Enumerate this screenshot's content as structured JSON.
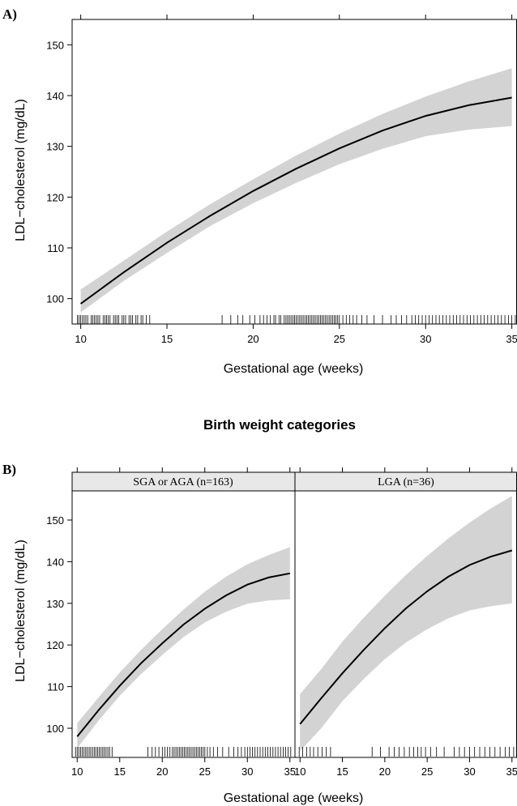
{
  "chart_data": [
    {
      "panel": "A)",
      "type": "line",
      "xlabel": "Gestational age (weeks)",
      "ylabel": "LDL−cholesterol (mg/dL)",
      "xlim": [
        9.5,
        35.3
      ],
      "ylim": [
        95,
        155
      ],
      "x_ticks": [
        10,
        15,
        20,
        25,
        30,
        35
      ],
      "y_ticks": [
        100,
        110,
        120,
        130,
        140,
        150
      ],
      "grid": false,
      "series": [
        {
          "x": [
            10,
            12.5,
            15,
            17.5,
            20,
            22.5,
            25,
            27.5,
            30,
            32.5,
            35
          ],
          "y": [
            99,
            105.2,
            111,
            116.3,
            121.2,
            125.6,
            129.6,
            133.1,
            136,
            138.1,
            139.6
          ],
          "lower": [
            97.3,
            103.5,
            109,
            114.3,
            118.8,
            122.8,
            126.5,
            129.5,
            132,
            133.3,
            134
          ],
          "upper": [
            101.8,
            107.5,
            113.2,
            118.6,
            123.5,
            128.2,
            132.5,
            136.4,
            139.8,
            142.8,
            145.4
          ]
        }
      ],
      "rug": [
        9.8,
        9.9,
        10,
        10.1,
        10.2,
        10.3,
        10.4,
        10.6,
        10.7,
        10.8,
        10.9,
        11,
        11.1,
        11.3,
        11.4,
        11.5,
        11.6,
        11.7,
        11.9,
        12,
        12.1,
        12.2,
        12.4,
        12.5,
        12.6,
        12.8,
        12.9,
        13,
        13.2,
        13.3,
        13.5,
        13.6,
        13.8,
        14,
        18.2,
        18.7,
        19.1,
        19.4,
        19.8,
        20.1,
        20.4,
        20.6,
        20.8,
        21,
        21.2,
        21.3,
        21.5,
        21.6,
        21.8,
        21.9,
        22,
        22.1,
        22.2,
        22.3,
        22.4,
        22.5,
        22.6,
        22.7,
        22.8,
        22.9,
        23,
        23.1,
        23.2,
        23.3,
        23.4,
        23.5,
        23.6,
        23.7,
        23.8,
        23.9,
        24,
        24.1,
        24.2,
        24.3,
        24.4,
        24.5,
        24.6,
        24.7,
        24.8,
        24.9,
        25,
        25.2,
        25.4,
        25.6,
        25.8,
        26,
        26.3,
        26.6,
        27,
        27.5,
        28,
        28.3,
        28.6,
        28.9,
        29.2,
        29.4,
        29.6,
        29.8,
        30,
        30.2,
        30.4,
        30.6,
        30.8,
        31,
        31.2,
        31.4,
        31.6,
        31.8,
        32,
        32.2,
        32.4,
        32.6,
        32.8,
        33,
        33.2,
        33.4,
        33.6,
        33.8,
        34,
        34.2,
        34.4,
        34.6,
        34.8,
        35,
        35.2
      ]
    },
    {
      "panel": "B)",
      "title": "Birth weight categories",
      "type": "line",
      "xlabel": "Gestational age (weeks)",
      "ylabel": "LDL−cholesterol (mg/dL)",
      "xlim": [
        9.5,
        35.5
      ],
      "ylim": [
        93,
        157
      ],
      "x_ticks": [
        10,
        15,
        20,
        25,
        30,
        35
      ],
      "y_ticks": [
        100,
        110,
        120,
        130,
        140,
        150
      ],
      "grid": false,
      "facets": [
        {
          "strip": "SGA or AGA (n=163)",
          "x": [
            10,
            12.5,
            15,
            17.5,
            20,
            22.5,
            25,
            27.5,
            30,
            32.5,
            35
          ],
          "y": [
            98,
            104.3,
            110.2,
            115.6,
            120.4,
            124.9,
            128.7,
            131.9,
            134.5,
            136.2,
            137.2
          ],
          "lower": [
            95.2,
            101.8,
            107.8,
            113,
            117.6,
            121.9,
            125.4,
            128,
            129.9,
            130.7,
            131
          ],
          "upper": [
            101.2,
            107.4,
            113.4,
            118.8,
            123.8,
            128.5,
            132.8,
            136.4,
            139.4,
            141.6,
            143.5
          ],
          "rug": [
            9.8,
            10,
            10.2,
            10.4,
            10.6,
            10.8,
            11,
            11.2,
            11.4,
            11.6,
            11.8,
            12,
            12.2,
            12.4,
            12.6,
            12.8,
            13,
            13.2,
            13.4,
            13.6,
            13.8,
            14.1,
            18.3,
            18.8,
            19.2,
            19.6,
            20,
            20.3,
            20.6,
            20.9,
            21.2,
            21.4,
            21.6,
            21.8,
            22,
            22.2,
            22.4,
            22.6,
            22.8,
            23,
            23.2,
            23.4,
            23.6,
            23.8,
            24,
            24.2,
            24.4,
            24.6,
            24.8,
            25,
            25.3,
            25.6,
            26,
            26.5,
            27.1,
            27.8,
            28.4,
            28.9,
            29.3,
            29.7,
            30,
            30.3,
            30.6,
            30.9,
            31.2,
            31.5,
            31.8,
            32.1,
            32.4,
            32.7,
            33,
            33.3,
            33.6,
            33.9,
            34.2,
            34.5,
            34.8,
            35.1
          ]
        },
        {
          "strip": "LGA (n=36)",
          "x": [
            10,
            12.5,
            15,
            17.5,
            20,
            22.5,
            25,
            27.5,
            30,
            32.5,
            35
          ],
          "y": [
            101,
            107.2,
            113.2,
            118.8,
            124,
            128.8,
            132.9,
            136.4,
            139.2,
            141.2,
            142.7
          ],
          "lower": [
            94.5,
            100,
            106.5,
            111.8,
            116.6,
            120.6,
            123.8,
            126.4,
            128.3,
            129.3,
            130
          ],
          "upper": [
            108.2,
            114.2,
            120.8,
            126.5,
            131.8,
            136.8,
            141.4,
            145.6,
            149.4,
            152.8,
            155.8
          ],
          "rug": [
            9.9,
            10.3,
            10.8,
            11.2,
            11.6,
            12.1,
            12.6,
            13.1,
            13.6,
            18.5,
            19.5,
            20.5,
            21.1,
            21.7,
            22.3,
            22.9,
            23.4,
            23.9,
            24.3,
            24.8,
            25.4,
            26.1,
            27,
            28.2,
            28.8,
            29.4,
            30,
            30.6,
            31.2,
            31.8,
            32.4,
            33,
            33.6,
            34.2,
            34.7,
            35.2
          ]
        }
      ]
    }
  ]
}
